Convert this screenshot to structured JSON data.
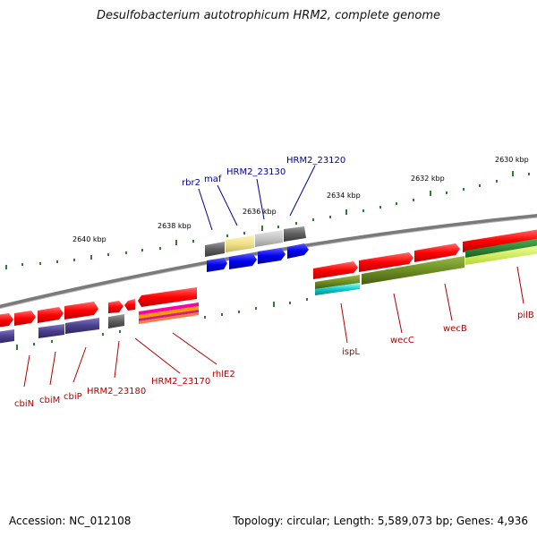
{
  "title": "Desulfobacterium autotrophicum HRM2, complete genome",
  "accession": "Accession: NC_012108",
  "summary": "Topology: circular; Length: 5,589,073 bp; Genes: 4,936",
  "ticks": [
    "2640 kbp",
    "2638 kbp",
    "2636 kbp",
    "2634 kbp",
    "2632 kbp",
    "2630 kbp"
  ],
  "genes_top": [
    "rbr2",
    "maf",
    "HRM2_23130",
    "HRM2_23120"
  ],
  "genes_bottom": [
    "cbiN",
    "cbiM",
    "cbiP",
    "HRM2_23180",
    "HRM2_23170",
    "rhlE2",
    "ispL",
    "wecC",
    "wecB",
    "pilB"
  ],
  "colors": {
    "backbone": "#7a7a7a",
    "forward_gene": "#ff0000",
    "blue_feature": "#0000ee",
    "purple_feature": "#4b3f8c",
    "olive_feature": "#6b8e23",
    "label_blue": "#00008b",
    "label_red": "#b30000",
    "tick": "#2e7d32"
  }
}
